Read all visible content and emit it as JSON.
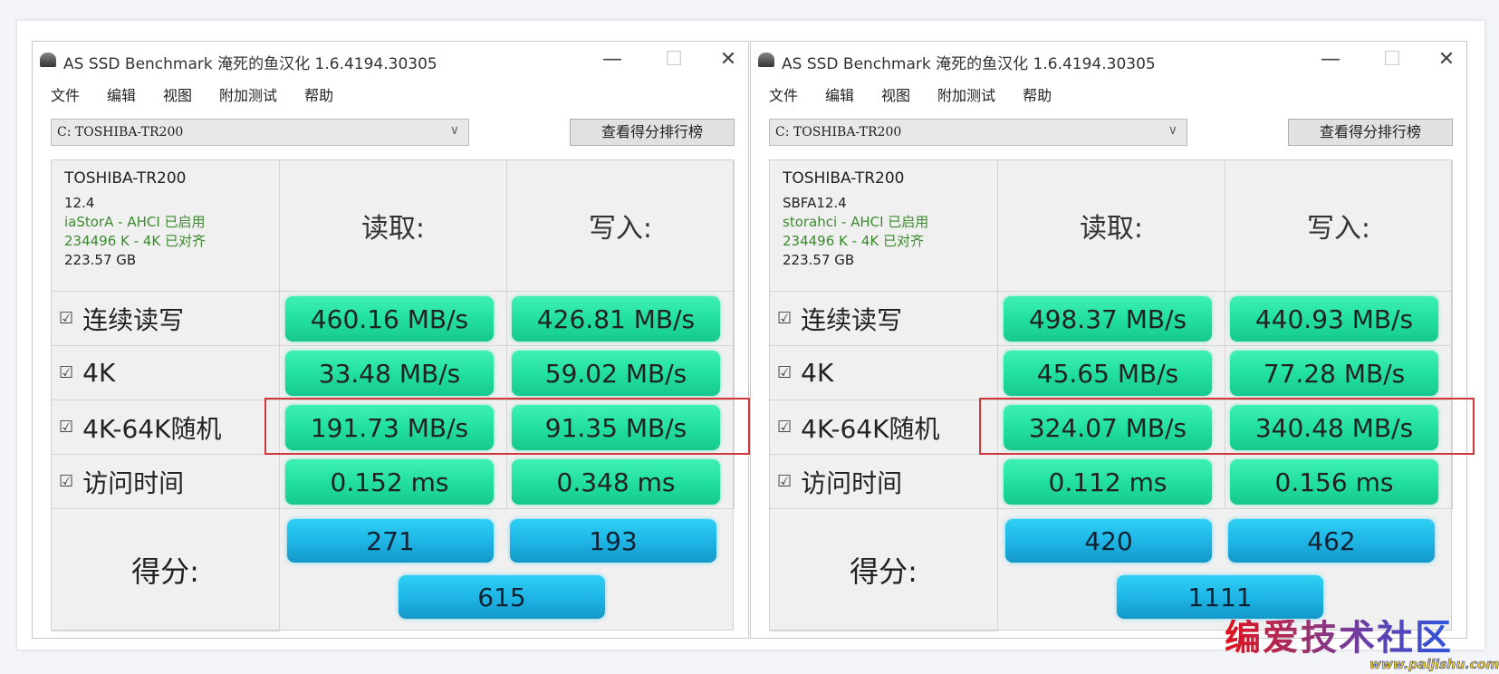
{
  "windows": [
    {
      "title": "AS SSD Benchmark 淹死的鱼汉化 1.6.4194.30305",
      "menu": [
        "文件",
        "编辑",
        "视图",
        "附加测试",
        "帮助"
      ],
      "drive_select": "C: TOSHIBA-TR200",
      "rank_button": "查看得分排行榜",
      "info": {
        "model": "TOSHIBA-TR200",
        "firmware": "12.4",
        "driver": "iaStorA - AHCI 已启用",
        "alignment": "234496 K - 4K 已对齐",
        "capacity": "223.57 GB"
      },
      "read_header": "读取:",
      "write_header": "写入:",
      "rows": [
        {
          "label": "连续读写",
          "read": "460.16 MB/s",
          "write": "426.81 MB/s"
        },
        {
          "label": "4K",
          "read": "33.48 MB/s",
          "write": "59.02 MB/s"
        },
        {
          "label": "4K-64K随机",
          "read": "191.73 MB/s",
          "write": "91.35 MB/s"
        },
        {
          "label": "访问时间",
          "read": "0.152 ms",
          "write": "0.348 ms"
        }
      ],
      "score_label": "得分:",
      "score_read": "271",
      "score_write": "193",
      "score_total": "615"
    },
    {
      "title": "AS SSD Benchmark 淹死的鱼汉化 1.6.4194.30305",
      "menu": [
        "文件",
        "编辑",
        "视图",
        "附加测试",
        "帮助"
      ],
      "drive_select": "C: TOSHIBA-TR200",
      "rank_button": "查看得分排行榜",
      "info": {
        "model": "TOSHIBA-TR200",
        "firmware": "SBFA12.4",
        "driver": "storahci - AHCI 已启用",
        "alignment": "234496 K - 4K 已对齐",
        "capacity": "223.57 GB"
      },
      "read_header": "读取:",
      "write_header": "写入:",
      "rows": [
        {
          "label": "连续读写",
          "read": "498.37 MB/s",
          "write": "440.93 MB/s"
        },
        {
          "label": "4K",
          "read": "45.65 MB/s",
          "write": "77.28 MB/s"
        },
        {
          "label": "4K-64K随机",
          "read": "324.07 MB/s",
          "write": "340.48 MB/s"
        },
        {
          "label": "访问时间",
          "read": "0.112 ms",
          "write": "0.156 ms"
        }
      ],
      "score_label": "得分:",
      "score_read": "420",
      "score_write": "462",
      "score_total": "1111"
    }
  ],
  "checkbox_glyph": "☑",
  "window_controls": {
    "minimize": "—",
    "maximize": "☐",
    "close": "✕"
  },
  "watermark": {
    "text": "编爱技术社区",
    "url": "www.paijishu.com"
  },
  "colors": {
    "value_bar": "#22e0a0",
    "score_bar": "#1fb6e6",
    "highlight": "#d0383b"
  }
}
